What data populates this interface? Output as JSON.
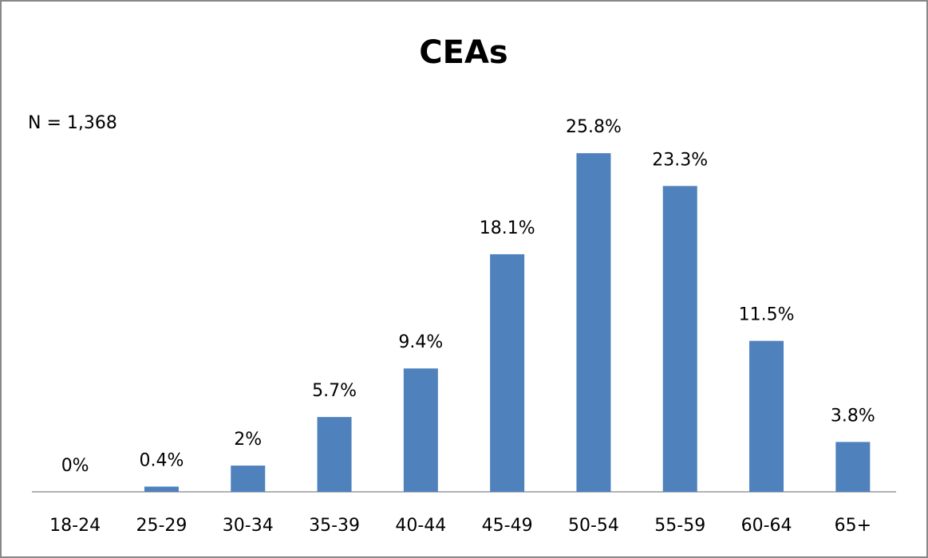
{
  "chart_data": {
    "type": "bar",
    "title": "CEAs",
    "annotation": "N = 1,368",
    "categories": [
      "18-24",
      "25-29",
      "30-34",
      "35-39",
      "40-44",
      "45-49",
      "50-54",
      "55-59",
      "60-64",
      "65+"
    ],
    "values": [
      0,
      0.4,
      2,
      5.7,
      9.4,
      18.1,
      25.8,
      23.3,
      11.5,
      3.8
    ],
    "value_labels": [
      "0%",
      "0.4%",
      "2%",
      "5.7%",
      "9.4%",
      "18.1%",
      "25.8%",
      "23.3%",
      "11.5%",
      "3.8%"
    ],
    "color": "#4f81bd",
    "ylim": [
      0,
      30
    ]
  }
}
